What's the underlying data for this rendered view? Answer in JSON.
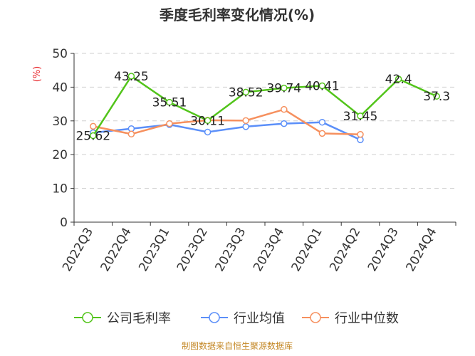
{
  "chart_data": {
    "type": "line",
    "title": "季度毛利率变化情况(%)",
    "ylabel": "(%)",
    "categories": [
      "2022Q3",
      "2022Q4",
      "2023Q1",
      "2023Q2",
      "2023Q3",
      "2023Q4",
      "2024Q1",
      "2024Q2",
      "2024Q3",
      "2024Q4"
    ],
    "ylim": [
      0,
      50
    ],
    "yticks": [
      0,
      10,
      20,
      30,
      40,
      50
    ],
    "grid": true,
    "legend_position": "bottom",
    "series": [
      {
        "name": "公司毛利率",
        "color": "#52c41a",
        "values": [
          25.62,
          43.25,
          35.51,
          30.11,
          38.52,
          39.74,
          40.41,
          31.45,
          42.4,
          37.3
        ],
        "labels": [
          "25.62",
          "43.25",
          "35.51",
          "30.11",
          "38.52",
          "39.74",
          "40.41",
          "31.45",
          "42.4",
          "37.3"
        ]
      },
      {
        "name": "行业均值",
        "color": "#5b8ff9",
        "values": [
          26.5,
          27.7,
          28.9,
          26.7,
          28.3,
          29.2,
          29.6,
          24.4,
          null,
          null
        ]
      },
      {
        "name": "行业中位数",
        "color": "#f6905e",
        "values": [
          28.4,
          26.1,
          29.2,
          30.2,
          30.1,
          33.4,
          26.3,
          26.0,
          null,
          null
        ]
      }
    ]
  },
  "footer": {
    "source": "制图数据来自恒生聚源数据库"
  }
}
